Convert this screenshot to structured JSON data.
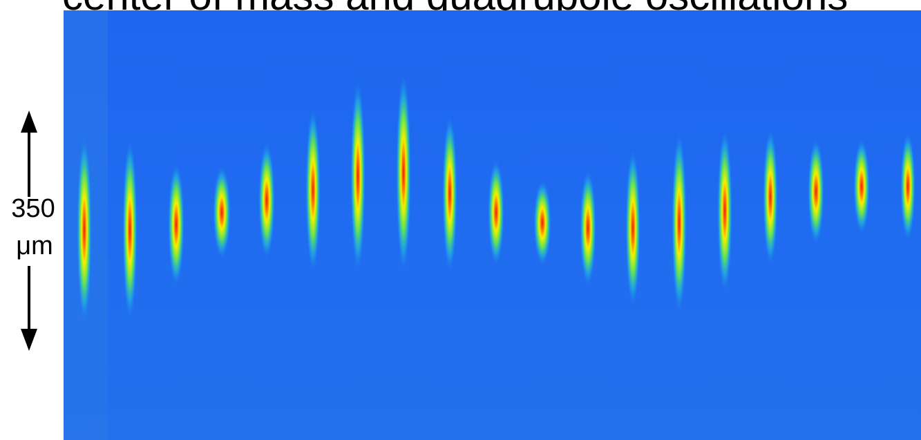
{
  "title": "center of mass and quadrupole oscillations",
  "scale_label": {
    "value": "350",
    "unit": "μm"
  }
}
